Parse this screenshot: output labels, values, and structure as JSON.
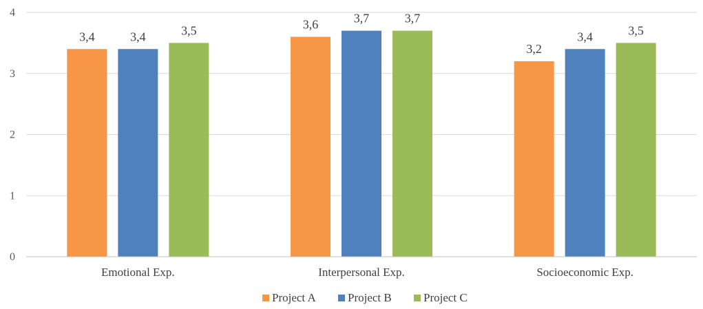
{
  "chart_data": {
    "type": "bar",
    "title": "",
    "xlabel": "",
    "ylabel": "",
    "categories": [
      "Emotional Exp.",
      "Interpersonal Exp.",
      "Socioeconomic Exp."
    ],
    "series": [
      {
        "name": "Project A",
        "color": "#f79646",
        "values": [
          3.4,
          3.6,
          3.2
        ],
        "labels": [
          "3,4",
          "3,6",
          "3,2"
        ]
      },
      {
        "name": "Project B",
        "color": "#4f81bd",
        "values": [
          3.4,
          3.7,
          3.4
        ],
        "labels": [
          "3,4",
          "3,7",
          "3,4"
        ]
      },
      {
        "name": "Project C",
        "color": "#9bbb59",
        "values": [
          3.5,
          3.7,
          3.5
        ],
        "labels": [
          "3,5",
          "3,7",
          "3,5"
        ]
      }
    ],
    "ylim": [
      0,
      4
    ],
    "yticks": [
      0,
      1,
      2,
      3,
      4
    ],
    "ytick_labels": [
      "0",
      "1",
      "2",
      "3",
      "4"
    ],
    "grid": true,
    "legend_position": "bottom-center"
  }
}
